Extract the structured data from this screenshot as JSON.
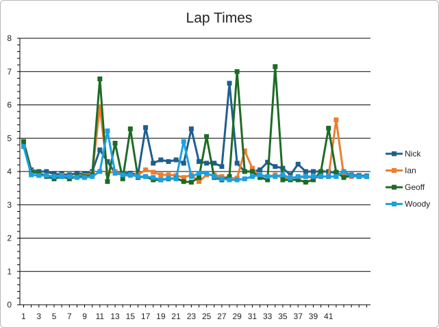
{
  "chart_data": {
    "type": "line",
    "title": "Lap Times",
    "xlabel": "",
    "ylabel": "",
    "ylim": [
      0,
      8
    ],
    "yticks": [
      "0",
      "1",
      "2",
      "3",
      "4",
      "5",
      "6",
      "7",
      "8"
    ],
    "x": [
      1,
      2,
      3,
      4,
      5,
      6,
      7,
      8,
      9,
      10,
      11,
      12,
      13,
      14,
      15,
      16,
      17,
      18,
      19,
      20,
      21,
      22,
      23,
      24,
      25,
      26,
      27,
      28,
      29,
      30,
      31,
      32,
      33,
      34,
      35,
      36,
      37,
      38,
      39,
      40,
      41,
      42,
      43,
      44,
      45,
      46
    ],
    "xtick_labels": [
      "1",
      "3",
      "5",
      "7",
      "9",
      "11",
      "13",
      "15",
      "17",
      "19",
      "21",
      "23",
      "25",
      "27",
      "29",
      "31",
      "33",
      "35",
      "37",
      "39",
      "41"
    ],
    "grid": true,
    "legend_position": "right",
    "series": [
      {
        "name": "Nick",
        "color": "#1f5f8b",
        "values": [
          4.9,
          4.05,
          4.0,
          4.0,
          3.92,
          3.92,
          3.9,
          3.95,
          3.92,
          4.0,
          4.65,
          4.3,
          3.95,
          3.95,
          3.95,
          3.9,
          5.32,
          4.25,
          4.35,
          4.3,
          4.35,
          4.25,
          5.28,
          4.3,
          4.25,
          4.25,
          4.15,
          6.65,
          4.25,
          4.0,
          4.0,
          4.05,
          4.28,
          4.15,
          4.1,
          3.9,
          4.22,
          4.0,
          4.0,
          4.0,
          4.0,
          3.95,
          3.9,
          3.9,
          3.88,
          3.87
        ]
      },
      {
        "name": "Ian",
        "color": "#ed7d31",
        "values": [
          4.85,
          4.0,
          3.95,
          3.88,
          3.85,
          3.88,
          3.85,
          3.85,
          3.88,
          3.95,
          5.95,
          3.95,
          4.0,
          3.88,
          3.88,
          3.9,
          4.05,
          3.98,
          3.9,
          3.9,
          3.88,
          3.82,
          3.9,
          3.7,
          3.9,
          3.9,
          3.85,
          3.8,
          3.8,
          4.62,
          4.1,
          3.85,
          3.85,
          3.9,
          3.8,
          3.82,
          3.8,
          3.85,
          3.8,
          3.85,
          3.85,
          5.55,
          3.88,
          3.85,
          3.85,
          3.85
        ]
      },
      {
        "name": "Geoff",
        "color": "#1d6b26",
        "values": [
          4.9,
          3.98,
          3.95,
          3.85,
          3.78,
          3.85,
          3.78,
          3.85,
          3.85,
          3.9,
          6.78,
          3.7,
          4.85,
          3.78,
          5.28,
          3.82,
          3.85,
          3.75,
          3.75,
          3.78,
          3.8,
          3.7,
          3.68,
          3.82,
          5.05,
          3.82,
          3.75,
          3.85,
          7.0,
          4.0,
          4.0,
          3.82,
          3.75,
          7.15,
          3.75,
          3.75,
          3.75,
          3.68,
          3.75,
          4.0,
          5.3,
          3.98,
          3.82,
          3.88,
          3.85,
          3.85
        ]
      },
      {
        "name": "Woody",
        "color": "#1ba1e2",
        "values": [
          4.75,
          3.9,
          3.88,
          3.88,
          3.85,
          3.85,
          3.85,
          3.82,
          3.82,
          3.85,
          4.0,
          5.22,
          3.95,
          3.9,
          3.9,
          3.85,
          3.85,
          3.82,
          3.75,
          3.8,
          3.78,
          4.9,
          3.85,
          3.95,
          3.95,
          3.85,
          3.78,
          3.75,
          3.75,
          3.78,
          3.85,
          3.9,
          3.85,
          3.85,
          3.9,
          3.8,
          3.85,
          3.85,
          3.85,
          3.85,
          3.85,
          3.85,
          4.0,
          3.88,
          3.85,
          3.85
        ]
      }
    ]
  }
}
